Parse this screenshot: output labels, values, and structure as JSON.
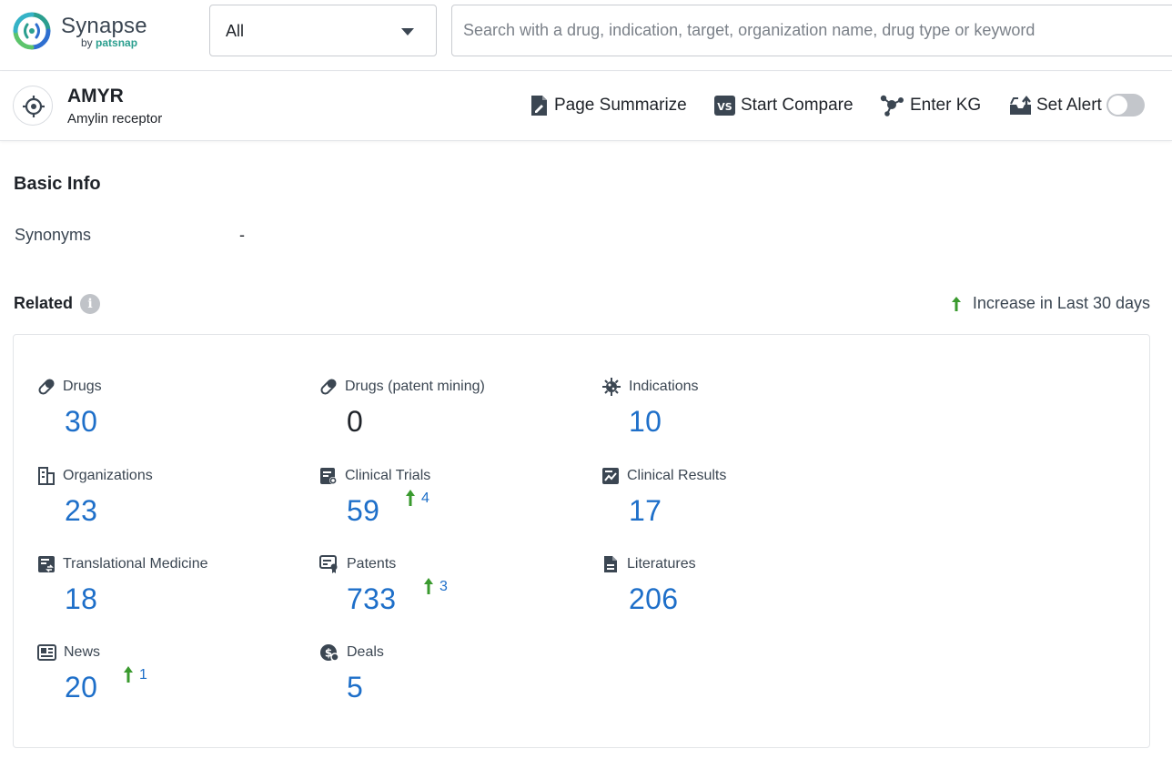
{
  "app": {
    "name": "Synapse",
    "by_prefix": "by",
    "by_brand": "patsnap"
  },
  "search": {
    "scope": "All",
    "placeholder": "Search with a drug, indication, target, organization name, drug type or keyword"
  },
  "entity": {
    "title": "AMYR",
    "subtitle": "Amylin receptor"
  },
  "actions": {
    "summarize": "Page Summarize",
    "compare": "Start Compare",
    "kg": "Enter KG",
    "alert": "Set Alert",
    "alert_enabled": false
  },
  "basic_info": {
    "title": "Basic Info",
    "synonyms_label": "Synonyms",
    "synonyms_value": "-"
  },
  "related": {
    "title": "Related",
    "legend": "Increase in Last 30 days",
    "items": [
      {
        "label": "Drugs",
        "value": "30",
        "icon": "pill-icon"
      },
      {
        "label": "Drugs (patent mining)",
        "value": "0",
        "icon": "pill-icon"
      },
      {
        "label": "Indications",
        "value": "10",
        "icon": "virus-icon"
      },
      {
        "label": "Organizations",
        "value": "23",
        "icon": "building-icon"
      },
      {
        "label": "Clinical Trials",
        "value": "59",
        "increase": "4",
        "icon": "clinical-trials-icon"
      },
      {
        "label": "Clinical Results",
        "value": "17",
        "icon": "chart-doc-icon"
      },
      {
        "label": "Translational Medicine",
        "value": "18",
        "icon": "translational-icon"
      },
      {
        "label": "Patents",
        "value": "733",
        "increase": "3",
        "icon": "patent-icon"
      },
      {
        "label": "Literatures",
        "value": "206",
        "icon": "document-icon"
      },
      {
        "label": "News",
        "value": "20",
        "increase": "1",
        "icon": "newspaper-icon"
      },
      {
        "label": "Deals",
        "value": "5",
        "icon": "deal-icon"
      }
    ]
  },
  "colors": {
    "accent_blue": "#1e6fc9",
    "increase_green": "#3a9a2e",
    "logo_teal": "#2b9f8f"
  }
}
